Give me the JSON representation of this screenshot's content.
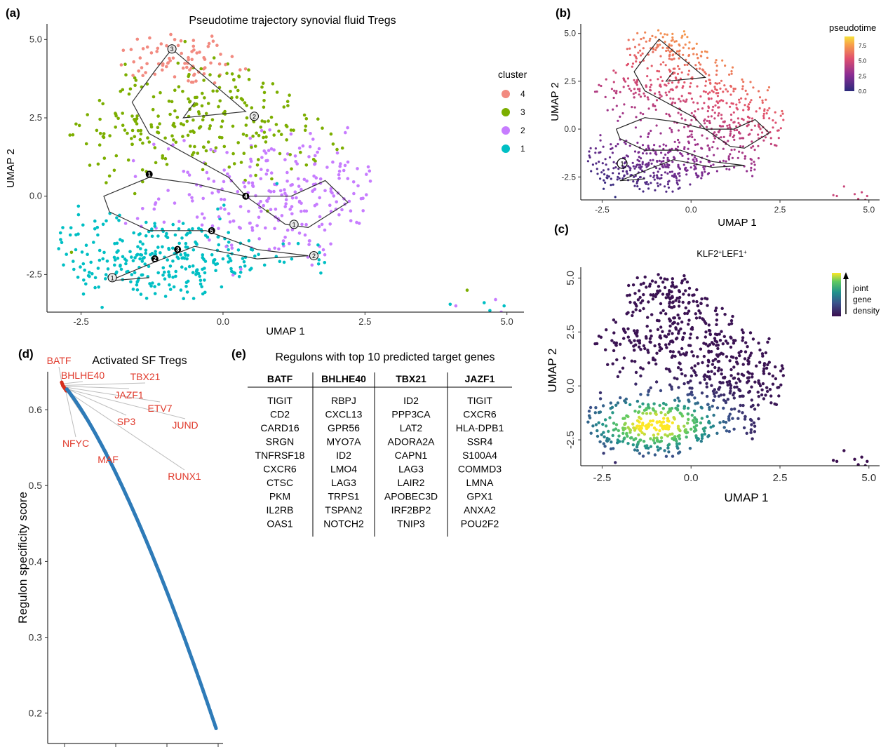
{
  "figure": {
    "panel_a": {
      "letter": "(a)",
      "title": "Pseudotime trajectory synovial fluid Tregs",
      "xlabel": "UMAP 1",
      "ylabel": "UMAP 2",
      "xticks": [
        "-2.5",
        "0.0",
        "2.5",
        "5.0"
      ],
      "yticks": [
        "5.0",
        "2.5",
        "0.0",
        "-2.5"
      ],
      "legend_title": "cluster",
      "legend": [
        {
          "label": "4",
          "color": "#f28a80"
        },
        {
          "label": "3",
          "color": "#7cae00"
        },
        {
          "label": "2",
          "color": "#c77cff"
        },
        {
          "label": "1",
          "color": "#00bfc4"
        }
      ],
      "node_labels": [
        "1",
        "2",
        "3",
        "4",
        "5"
      ]
    },
    "panel_b": {
      "letter": "(b)",
      "xlabel": "UMAP 1",
      "ylabel": "UMAP 2",
      "xticks": [
        "-2.5",
        "0.0",
        "2.5",
        "5.0"
      ],
      "yticks": [
        "5.0",
        "2.5",
        "0.0",
        "-2.5"
      ],
      "legend_title": "pseudotime",
      "legend_ticks": [
        "7.5",
        "5.0",
        "2.5",
        "0.0"
      ],
      "root_label": "1"
    },
    "panel_c": {
      "letter": "(c)",
      "title_main": "KLF2",
      "title_sup1": "+",
      "title_mid": "LEF1",
      "title_sup2": "+",
      "xlabel": "UMAP 1",
      "ylabel": "UMAP 2",
      "xticks": [
        "-2.5",
        "0.0",
        "2.5",
        "5.0"
      ],
      "yticks": [
        "5.0",
        "2.5",
        "0.0",
        "-2.5"
      ],
      "legend_line1": "joint",
      "legend_line2": "gene",
      "legend_line3": "density"
    },
    "panel_d": {
      "letter": "(d)",
      "title": "Activated SF Tregs",
      "ylabel": "Regulon specificity score",
      "yticks": [
        "0.6",
        "0.5",
        "0.4",
        "0.3",
        "0.2"
      ],
      "top_labels": [
        "BATF",
        "BHLHE40",
        "TBX21",
        "JAZF1",
        "ETV7",
        "SP3",
        "JUND",
        "NFYC",
        "MAF",
        "RUNX1"
      ]
    },
    "panel_e": {
      "letter": "(e)",
      "title": "Regulons with top 10 predicted target genes",
      "columns": [
        {
          "header": "BATF",
          "genes": [
            "TIGIT",
            "CD2",
            "CARD16",
            "SRGN",
            "TNFRSF18",
            "CXCR6",
            "CTSC",
            "PKM",
            "IL2RB",
            "OAS1"
          ]
        },
        {
          "header": "BHLHE40",
          "genes": [
            "RBPJ",
            "CXCL13",
            "GPR56",
            "MYO7A",
            "ID2",
            "LMO4",
            "LAG3",
            "TRPS1",
            "TSPAN2",
            "NOTCH2"
          ]
        },
        {
          "header": "TBX21",
          "genes": [
            "ID2",
            "PPP3CA",
            "LAT2",
            "ADORA2A",
            "CAPN1",
            "LAG3",
            "LAIR2",
            "APOBEC3D",
            "IRF2BP2",
            "TNIP3"
          ]
        },
        {
          "header": "JAZF1",
          "genes": [
            "TIGIT",
            "CXCR6",
            "HLA-DPB1",
            "SSR4",
            "S100A4",
            "COMMD3",
            "LMNA",
            "GPX1",
            "ANXA2",
            "POU2F2"
          ]
        }
      ]
    }
  },
  "chart_data": [
    {
      "type": "scatter",
      "panel": "a",
      "title": "Pseudotime trajectory synovial fluid Tregs",
      "xlabel": "UMAP 1",
      "ylabel": "UMAP 2",
      "xlim": [
        -3.1,
        5.3
      ],
      "ylim": [
        -3.7,
        5.5
      ],
      "grid": false,
      "legend_position": "right",
      "series": [
        {
          "name": "4",
          "center": [
            -0.8,
            4.4
          ],
          "spread": [
            0.9,
            0.45
          ],
          "count": 80
        },
        {
          "name": "3",
          "center": [
            -0.5,
            2.4
          ],
          "spread": [
            1.4,
            1.0
          ],
          "count": 260
        },
        {
          "name": "2",
          "center": [
            1.3,
            0.0
          ],
          "spread": [
            1.2,
            1.0
          ],
          "count": 260
        },
        {
          "name": "1",
          "center": [
            -1.2,
            -2.0
          ],
          "spread": [
            1.3,
            0.7
          ],
          "count": 300
        }
      ],
      "trajectory": [
        [
          -1.3,
          -2.6
        ],
        [
          -2.0,
          -2.7
        ],
        [
          -1.2,
          -2.1
        ],
        [
          -0.5,
          -1.6
        ],
        [
          0.6,
          -2.0
        ],
        [
          1.5,
          -1.9
        ],
        [
          0.6,
          -1.7
        ],
        [
          -0.3,
          -1.1
        ],
        [
          -1.3,
          -1.1
        ],
        [
          -2.0,
          -0.5
        ],
        [
          -2.1,
          0.0
        ],
        [
          -1.3,
          0.6
        ],
        [
          -0.5,
          0.4
        ],
        [
          0.4,
          0.0
        ],
        [
          1.2,
          0.0
        ],
        [
          1.8,
          0.5
        ],
        [
          2.2,
          -0.2
        ],
        [
          1.5,
          -1.0
        ],
        [
          1.1,
          -0.9
        ],
        [
          0.4,
          0.0
        ],
        [
          0.1,
          0.6
        ],
        [
          -0.3,
          1.0
        ],
        [
          -0.8,
          1.5
        ],
        [
          -1.3,
          2.0
        ],
        [
          -1.6,
          3.0
        ],
        [
          -1.2,
          4.0
        ],
        [
          -0.9,
          4.7
        ],
        [
          0.4,
          2.7
        ],
        [
          -0.7,
          2.5
        ],
        [
          -0.5,
          3.0
        ]
      ],
      "nodes": [
        {
          "label": "1",
          "x": -1.3,
          "y": 0.7,
          "type": "branch"
        },
        {
          "label": "2",
          "x": -1.2,
          "y": -2.0,
          "type": "branch"
        },
        {
          "label": "3",
          "x": -0.8,
          "y": -1.7,
          "type": "branch"
        },
        {
          "label": "4",
          "x": 0.4,
          "y": 0.0,
          "type": "branch"
        },
        {
          "label": "5",
          "x": -0.2,
          "y": -1.1,
          "type": "branch"
        },
        {
          "label": "1",
          "x": -1.95,
          "y": -2.6,
          "type": "leaf"
        },
        {
          "label": "1",
          "x": 1.25,
          "y": -0.9,
          "type": "leaf"
        },
        {
          "label": "2",
          "x": 0.55,
          "y": 2.55,
          "type": "leaf"
        },
        {
          "label": "2",
          "x": 1.6,
          "y": -1.9,
          "type": "leaf"
        },
        {
          "label": "3",
          "x": -0.9,
          "y": 4.7,
          "type": "leaf"
        }
      ],
      "outliers": [
        [
          4.3,
          -3.0
        ],
        [
          4.1,
          -3.5
        ],
        [
          4.6,
          -3.4
        ],
        [
          4.8,
          -3.3
        ],
        [
          4.95,
          -3.5
        ],
        [
          4.9,
          -3.7
        ],
        [
          4.7,
          -3.65
        ],
        [
          5.05,
          -3.9
        ],
        [
          4.0,
          -3.45
        ]
      ]
    },
    {
      "type": "scatter",
      "panel": "b",
      "xlabel": "UMAP 1",
      "ylabel": "UMAP 2",
      "xlim": [
        -3.1,
        5.3
      ],
      "ylim": [
        -3.7,
        5.5
      ],
      "color_by": "pseudotime",
      "color_range": [
        0,
        9
      ],
      "legend_ticks": [
        0.0,
        2.5,
        5.0,
        7.5
      ]
    },
    {
      "type": "scatter",
      "panel": "c",
      "title": "KLF2+LEF1+",
      "xlabel": "UMAP 1",
      "ylabel": "UMAP 2",
      "xlim": [
        -3.1,
        5.3
      ],
      "ylim": [
        -3.7,
        5.5
      ],
      "color_by": "joint gene density",
      "hotspot": [
        -1.0,
        -1.8
      ]
    },
    {
      "type": "scatter",
      "panel": "d",
      "title": "Activated SF Tregs",
      "ylabel": "Regulon specificity score",
      "ylim": [
        0.16,
        0.65
      ],
      "n_regulons": 300,
      "max_score": 0.635,
      "min_score": 0.18,
      "highlighted": [
        {
          "name": "BATF",
          "value": 0.636
        },
        {
          "name": "BHLHE40",
          "value": 0.634
        },
        {
          "name": "TBX21",
          "value": 0.632
        },
        {
          "name": "JAZF1",
          "value": 0.631
        },
        {
          "name": "ETV7",
          "value": 0.63
        },
        {
          "name": "SP3",
          "value": 0.629
        },
        {
          "name": "JUND",
          "value": 0.628
        },
        {
          "name": "NFYC",
          "value": 0.627
        },
        {
          "name": "MAF",
          "value": 0.626
        },
        {
          "name": "RUNX1",
          "value": 0.625
        }
      ]
    },
    {
      "type": "table",
      "panel": "e",
      "title": "Regulons with top 10 predicted target genes"
    }
  ]
}
